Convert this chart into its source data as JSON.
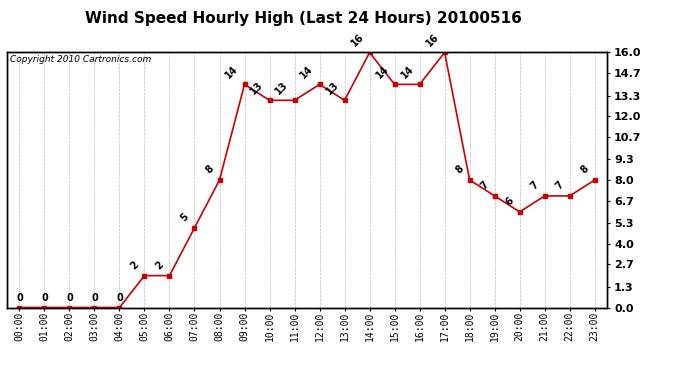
{
  "title": "Wind Speed Hourly High (Last 24 Hours) 20100516",
  "copyright": "Copyright 2010 Cartronics.com",
  "hours": [
    "00:00",
    "01:00",
    "02:00",
    "03:00",
    "04:00",
    "05:00",
    "06:00",
    "07:00",
    "08:00",
    "09:00",
    "10:00",
    "11:00",
    "12:00",
    "13:00",
    "14:00",
    "15:00",
    "16:00",
    "17:00",
    "18:00",
    "19:00",
    "20:00",
    "21:00",
    "22:00",
    "23:00"
  ],
  "values": [
    0,
    0,
    0,
    0,
    0,
    2,
    2,
    5,
    8,
    14,
    13,
    13,
    14,
    13,
    16,
    14,
    14,
    16,
    8,
    7,
    6,
    7,
    7,
    8
  ],
  "ylim": [
    0.0,
    16.0
  ],
  "yticks": [
    0.0,
    1.3,
    2.7,
    4.0,
    5.3,
    6.7,
    8.0,
    9.3,
    10.7,
    12.0,
    13.3,
    14.7,
    16.0
  ],
  "line_color": "#cc0000",
  "marker_color": "#cc0000",
  "bg_color": "#ffffff",
  "grid_color": "#bbbbbb",
  "title_fontsize": 11,
  "annot_fontsize": 7,
  "tick_fontsize": 7,
  "copyright_fontsize": 6.5,
  "yright_fontsize": 8
}
